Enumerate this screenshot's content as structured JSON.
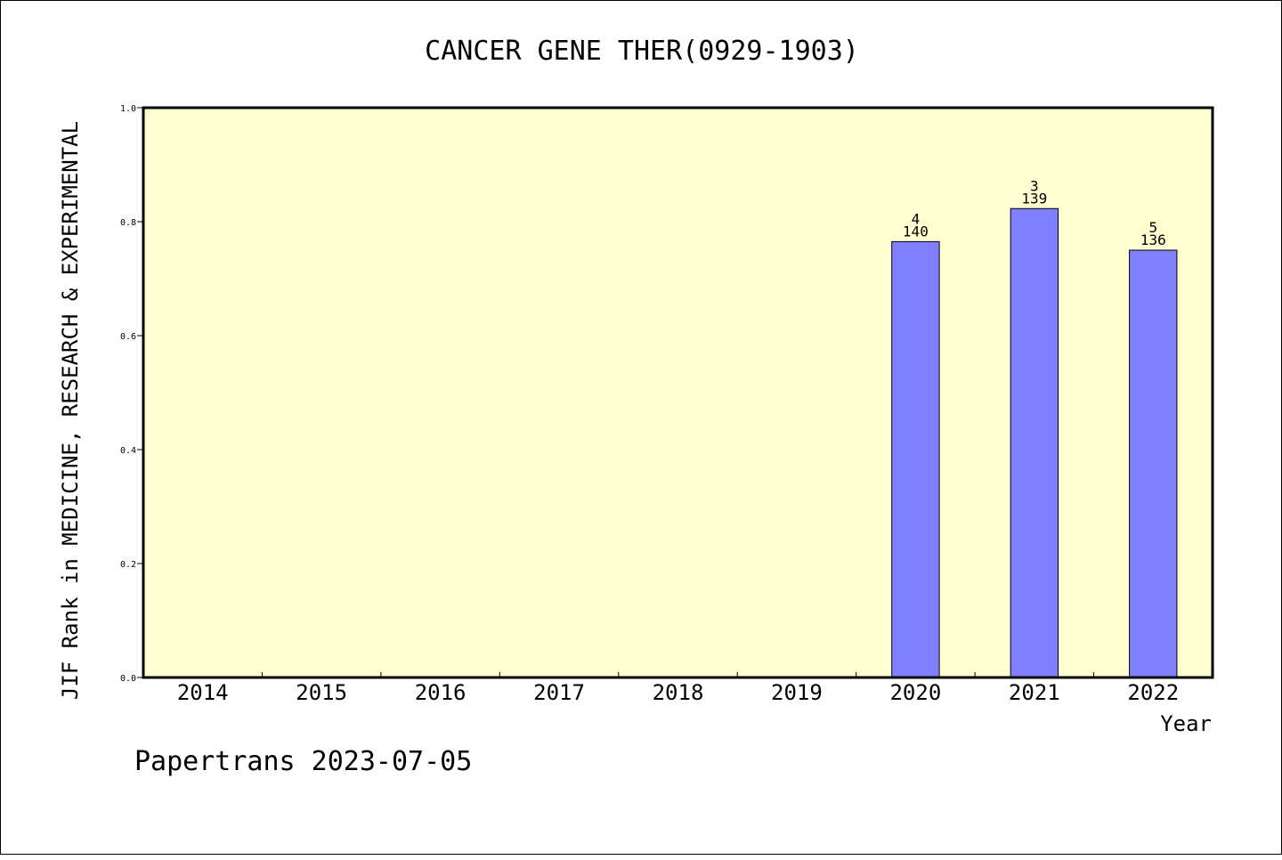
{
  "chart_data": {
    "type": "bar",
    "title": "CANCER GENE THER(0929-1903)",
    "xlabel": "Year",
    "ylabel": "JIF Rank in MEDICINE, RESEARCH & EXPERIMENTAL",
    "categories": [
      "2014",
      "2015",
      "2016",
      "2017",
      "2018",
      "2019",
      "2020",
      "2021",
      "2022"
    ],
    "values": [
      null,
      null,
      null,
      null,
      null,
      null,
      0.765,
      0.823,
      0.75
    ],
    "bar_labels": [
      null,
      null,
      null,
      null,
      null,
      null,
      {
        "rank": "4",
        "total": "140"
      },
      {
        "rank": "3",
        "total": "139"
      },
      {
        "rank": "5",
        "total": "136"
      }
    ],
    "ylim": [
      0,
      1.0
    ],
    "yticks": [
      "0.0",
      "0.2",
      "0.4",
      "0.6",
      "0.8",
      "1.0"
    ],
    "grid": false,
    "colors": {
      "plot_background": "#ffffd2",
      "bar": "#8080ff"
    }
  },
  "footer": "Papertrans 2023-07-05"
}
